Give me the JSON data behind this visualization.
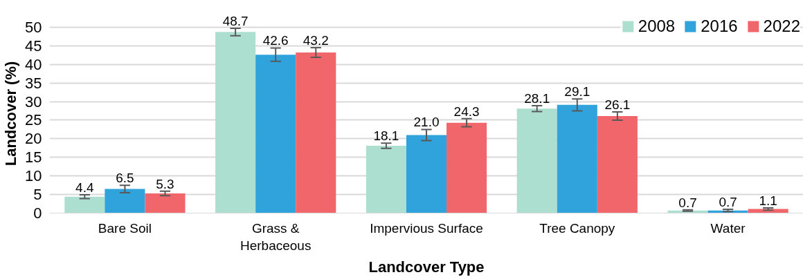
{
  "chart_data": {
    "type": "bar",
    "xlabel": "Landcover Type",
    "ylabel": "Landcover (%)",
    "categories": [
      "Bare Soil",
      "Grass &\nHerbaceous",
      "Impervious Surface",
      "Tree Canopy",
      "Water"
    ],
    "series": [
      {
        "name": "2008",
        "color": "#acdfd0",
        "values": [
          4.4,
          48.7,
          18.1,
          28.1,
          0.7
        ],
        "errors": [
          0.5,
          1.0,
          0.7,
          0.8,
          0.2
        ],
        "value_labels": [
          "4.4",
          "48.7",
          "18.1",
          "28.1",
          "0.7"
        ]
      },
      {
        "name": "2016",
        "color": "#31a3dc",
        "values": [
          6.5,
          42.6,
          21.0,
          29.1,
          0.7
        ],
        "errors": [
          1.0,
          1.8,
          1.5,
          1.6,
          0.3
        ],
        "value_labels": [
          "6.5",
          "42.6",
          "21.0",
          "29.1",
          "0.7"
        ]
      },
      {
        "name": "2022",
        "color": "#f0666b",
        "values": [
          5.3,
          43.2,
          24.3,
          26.1,
          1.1
        ],
        "errors": [
          0.6,
          1.3,
          1.1,
          1.1,
          0.3
        ],
        "value_labels": [
          "5.3",
          "43.2",
          "24.3",
          "26.1",
          "1.1"
        ]
      }
    ],
    "ylim": [
      0,
      50
    ],
    "yticks": [
      0,
      5,
      10,
      15,
      20,
      25,
      30,
      35,
      40,
      45,
      50
    ],
    "grid": "y",
    "legend": "top right",
    "data_labels": true
  }
}
